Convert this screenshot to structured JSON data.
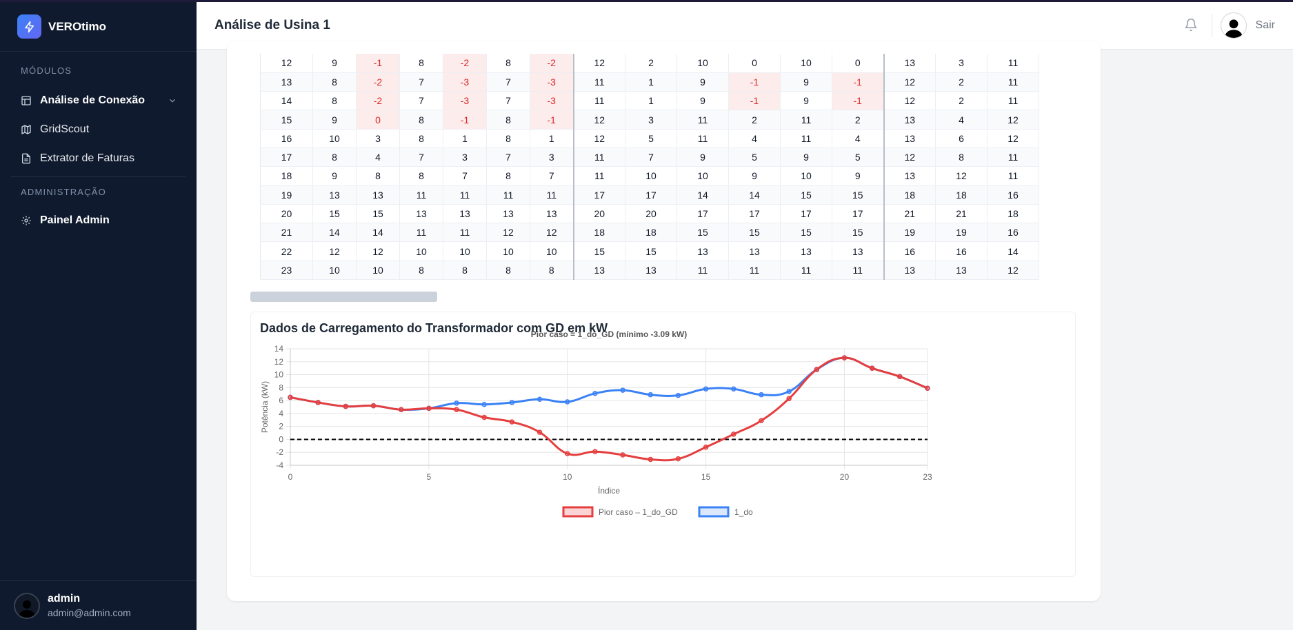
{
  "app": {
    "name": "VEROtimo"
  },
  "sidebar": {
    "modules_title": "MÓDULOS",
    "items": [
      {
        "label": "Análise de Conexão"
      },
      {
        "label": "GridScout"
      },
      {
        "label": "Extrator de Faturas"
      }
    ],
    "admin_title": "ADMINISTRAÇÃO",
    "admin_items": [
      {
        "label": "Painel Admin"
      }
    ]
  },
  "user": {
    "name": "admin",
    "email": "admin@admin.com"
  },
  "header": {
    "title": "Análise de Usina 1",
    "logout_label": "Sair"
  },
  "table": {
    "rows": [
      [
        "12",
        "9",
        "-1",
        "8",
        "-2",
        "8",
        "-2",
        "12",
        "2",
        "10",
        "0",
        "10",
        "0",
        "13",
        "3",
        "11"
      ],
      [
        "13",
        "8",
        "-2",
        "7",
        "-3",
        "7",
        "-3",
        "11",
        "1",
        "9",
        "-1",
        "9",
        "-1",
        "12",
        "2",
        "11"
      ],
      [
        "14",
        "8",
        "-2",
        "7",
        "-3",
        "7",
        "-3",
        "11",
        "1",
        "9",
        "-1",
        "9",
        "-1",
        "12",
        "2",
        "11"
      ],
      [
        "15",
        "9",
        "0",
        "8",
        "-1",
        "8",
        "-1",
        "12",
        "3",
        "11",
        "2",
        "11",
        "2",
        "13",
        "4",
        "12"
      ],
      [
        "16",
        "10",
        "3",
        "8",
        "1",
        "8",
        "1",
        "12",
        "5",
        "11",
        "4",
        "11",
        "4",
        "13",
        "6",
        "12"
      ],
      [
        "17",
        "8",
        "4",
        "7",
        "3",
        "7",
        "3",
        "11",
        "7",
        "9",
        "5",
        "9",
        "5",
        "12",
        "8",
        "11"
      ],
      [
        "18",
        "9",
        "8",
        "8",
        "7",
        "8",
        "7",
        "11",
        "10",
        "10",
        "9",
        "10",
        "9",
        "13",
        "12",
        "11"
      ],
      [
        "19",
        "13",
        "13",
        "11",
        "11",
        "11",
        "11",
        "17",
        "17",
        "14",
        "14",
        "15",
        "15",
        "18",
        "18",
        "16"
      ],
      [
        "20",
        "15",
        "15",
        "13",
        "13",
        "13",
        "13",
        "20",
        "20",
        "17",
        "17",
        "17",
        "17",
        "21",
        "21",
        "18"
      ],
      [
        "21",
        "14",
        "14",
        "11",
        "11",
        "12",
        "12",
        "18",
        "18",
        "15",
        "15",
        "15",
        "15",
        "19",
        "19",
        "16"
      ],
      [
        "22",
        "12",
        "12",
        "10",
        "10",
        "10",
        "10",
        "15",
        "15",
        "13",
        "13",
        "13",
        "13",
        "16",
        "16",
        "14"
      ],
      [
        "23",
        "10",
        "10",
        "8",
        "8",
        "8",
        "8",
        "13",
        "13",
        "11",
        "11",
        "11",
        "11",
        "13",
        "13",
        "12"
      ]
    ]
  },
  "chart_section_title": "Dados de Carregamento do Transformador com GD em kW",
  "chart_data": {
    "type": "line",
    "title": "Pior caso = 1_do_GD (mínimo -3.09 kW)",
    "xlabel": "Índice",
    "ylabel": "Potência (kW)",
    "xlim": [
      0,
      23
    ],
    "ylim": [
      -4,
      14
    ],
    "x_ticks": [
      "0",
      "5",
      "10",
      "15",
      "20",
      "23"
    ],
    "y_ticks": [
      "14",
      "12",
      "10",
      "8",
      "6",
      "4",
      "2",
      "0",
      "-2",
      "-4"
    ],
    "legend_position": "bottom",
    "reference_line": {
      "y": 0,
      "style": "dashed",
      "color": "#000000"
    },
    "x": [
      0,
      1,
      2,
      3,
      4,
      5,
      6,
      7,
      8,
      9,
      10,
      11,
      12,
      13,
      14,
      15,
      16,
      17,
      18,
      19,
      20,
      21,
      22,
      23
    ],
    "series": [
      {
        "name": "Pior caso – 1_do_GD",
        "color": "#e53e3e",
        "values": [
          6.5,
          5.7,
          5.1,
          5.2,
          4.6,
          4.8,
          4.6,
          3.4,
          2.7,
          1.1,
          -2.2,
          -1.9,
          -2.4,
          -3.09,
          -3.0,
          -1.2,
          0.8,
          2.9,
          6.3,
          10.8,
          12.6,
          11.0,
          9.7,
          7.9
        ]
      },
      {
        "name": "1_do",
        "color": "#3b82f6",
        "values": [
          6.5,
          5.7,
          5.1,
          5.2,
          4.6,
          4.8,
          5.6,
          5.4,
          5.7,
          6.2,
          5.8,
          7.1,
          7.6,
          6.9,
          6.8,
          7.8,
          7.8,
          6.9,
          7.4,
          10.8,
          12.6,
          11.0,
          9.7,
          7.9
        ]
      }
    ]
  }
}
